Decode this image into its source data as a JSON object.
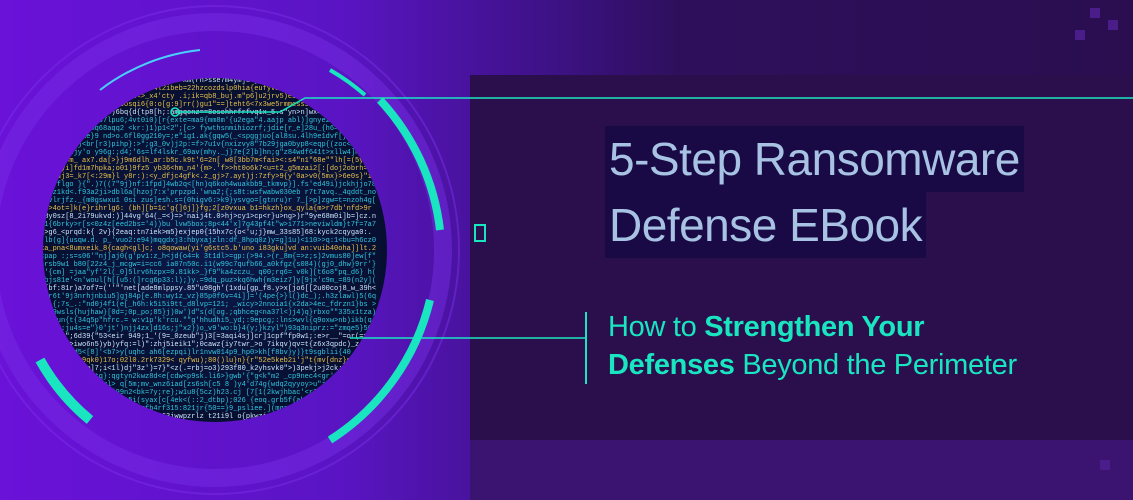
{
  "title": {
    "line1": "5-Step Ransomware",
    "line2": "Defense EBook"
  },
  "subtitle": {
    "part1": "How to ",
    "bold1": "Strengthen Your",
    "bold2": "Defenses",
    "part2": " Beyond the Perimeter"
  },
  "colors": {
    "accent": "#19e6c0",
    "title": "#a7c2e2",
    "background": "#2b0e4c",
    "purple": "#6a12d8"
  }
}
